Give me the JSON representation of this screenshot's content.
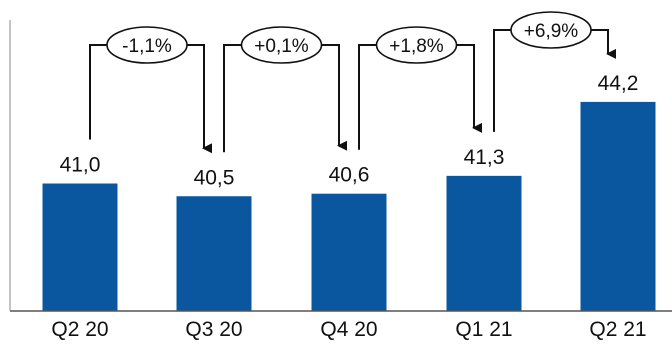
{
  "chart_data": {
    "type": "bar",
    "title": "",
    "xlabel": "",
    "ylabel": "",
    "categories": [
      "Q2 20",
      "Q3 20",
      "Q4 20",
      "Q1 21",
      "Q2 21"
    ],
    "values": [
      41.0,
      40.5,
      40.6,
      41.3,
      44.2
    ],
    "value_labels": [
      "41,0",
      "40,5",
      "40,6",
      "41,3",
      "44,2"
    ],
    "changes": [
      {
        "from": "Q2 20",
        "to": "Q3 20",
        "label": "-1,1%"
      },
      {
        "from": "Q3 20",
        "to": "Q4 20",
        "label": "+0,1%"
      },
      {
        "from": "Q4 20",
        "to": "Q1 21",
        "label": "+1,8%"
      },
      {
        "from": "Q1 21",
        "to": "Q2 21",
        "label": "+6,9%"
      }
    ],
    "ylim": [
      36,
      46
    ],
    "grid": false,
    "legend": "none",
    "bar_color": "#0a57a0",
    "text_color": "#111111"
  }
}
